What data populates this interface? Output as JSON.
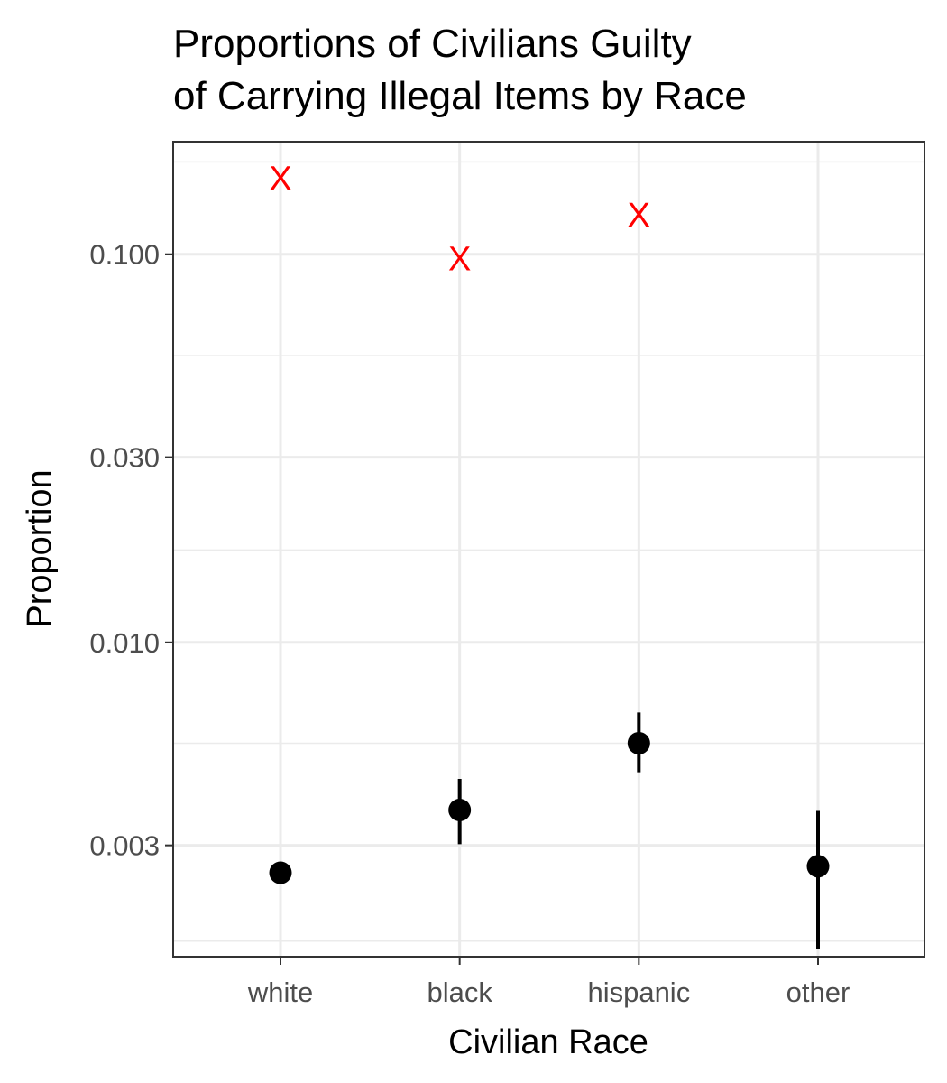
{
  "chart_data": {
    "type": "scatter",
    "title_lines": [
      "Proportions of Civilians Guilty",
      "of Carrying Illegal Items by Race"
    ],
    "xlabel": "Civilian Race",
    "ylabel": "Proportion",
    "y_scale": "log",
    "ylim": [
      0.00155,
      0.195
    ],
    "categories": [
      "white",
      "black",
      "hispanic",
      "other"
    ],
    "y_ticks": [
      0.003,
      0.01,
      0.03,
      0.1
    ],
    "y_tick_labels": [
      "0.003",
      "0.010",
      "0.030",
      "0.100"
    ],
    "y_minor_ticks": [
      0.0017,
      0.0055,
      0.0173,
      0.0548,
      0.173
    ],
    "grid": true,
    "series": [
      {
        "marker": "circle",
        "color": "#000000",
        "values": [
          0.00255,
          0.0037,
          0.0055,
          0.00265
        ],
        "lower": [
          0.00238,
          0.00302,
          0.00463,
          0.00162
        ],
        "upper": [
          0.00272,
          0.00445,
          0.0066,
          0.00368
        ]
      },
      {
        "marker": "x",
        "marker_label": "X",
        "color": "#ff0000",
        "values": [
          0.158,
          0.098,
          0.127
        ]
      }
    ]
  }
}
